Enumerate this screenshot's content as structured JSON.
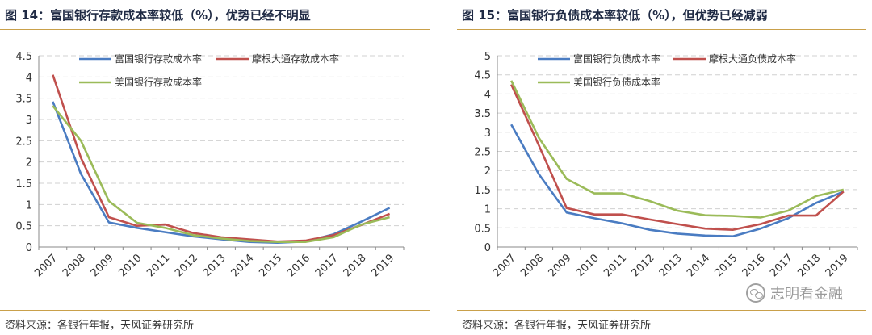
{
  "figures": [
    {
      "title": "图 14：富国银行存款成本率较低（%），优势已经不明显",
      "source": "资料来源：各银行年报，天风证券研究所"
    },
    {
      "title": "图 15：富国银行负债成本率较低（%），但优势已经减弱",
      "source": "资料来源：各银行年报，天风证券研究所"
    }
  ],
  "watermark": {
    "text": "志明看金融",
    "icon": "wechat-icon"
  },
  "chart_data": [
    {
      "type": "line",
      "title": "",
      "x": [
        "2007",
        "2008",
        "2009",
        "2010",
        "2011",
        "2012",
        "2013",
        "2014",
        "2015",
        "2016",
        "2017",
        "2018",
        "2019"
      ],
      "ylim": [
        0,
        4.5
      ],
      "yticks": [
        "0",
        "0.5",
        "1",
        "1.5",
        "2",
        "2.5",
        "3",
        "3.5",
        "4",
        "4.5"
      ],
      "grid": true,
      "legend": "top",
      "series": [
        {
          "name": "富国银行存款成本率",
          "color": "#4a7cc2",
          "values": [
            3.42,
            1.72,
            0.58,
            0.45,
            0.35,
            0.25,
            0.18,
            0.12,
            0.1,
            0.13,
            0.3,
            0.6,
            0.92
          ]
        },
        {
          "name": "摩根大通存款成本率",
          "color": "#c0504d",
          "values": [
            4.05,
            2.1,
            0.7,
            0.5,
            0.53,
            0.33,
            0.23,
            0.18,
            0.13,
            0.15,
            0.28,
            0.52,
            0.78
          ]
        },
        {
          "name": "美国银行存款成本率",
          "color": "#9bbb59",
          "values": [
            3.32,
            2.5,
            1.08,
            0.57,
            0.45,
            0.28,
            0.2,
            0.14,
            0.12,
            0.12,
            0.23,
            0.53,
            0.7
          ]
        }
      ]
    },
    {
      "type": "line",
      "title": "",
      "x": [
        "2007",
        "2008",
        "2009",
        "2010",
        "2011",
        "2012",
        "2013",
        "2014",
        "2015",
        "2016",
        "2017",
        "2018",
        "2019"
      ],
      "ylim": [
        0,
        5
      ],
      "yticks": [
        "0",
        "0.5",
        "1",
        "1.5",
        "2",
        "2.5",
        "3",
        "3.5",
        "4",
        "4.5",
        "5"
      ],
      "grid": true,
      "legend": "top",
      "series": [
        {
          "name": "富国银行负债成本率",
          "color": "#4a7cc2",
          "values": [
            3.2,
            1.9,
            0.9,
            0.75,
            0.62,
            0.45,
            0.35,
            0.3,
            0.28,
            0.48,
            0.75,
            1.15,
            1.45
          ]
        },
        {
          "name": "摩根大通负债成本率",
          "color": "#c0504d",
          "values": [
            4.25,
            2.65,
            1.02,
            0.85,
            0.85,
            0.72,
            0.6,
            0.48,
            0.45,
            0.6,
            0.82,
            0.82,
            1.45
          ]
        },
        {
          "name": "美国银行负债成本率",
          "color": "#9bbb59",
          "values": [
            4.35,
            2.85,
            1.78,
            1.4,
            1.4,
            1.2,
            0.95,
            0.83,
            0.81,
            0.77,
            0.95,
            1.33,
            1.5
          ]
        }
      ]
    }
  ]
}
